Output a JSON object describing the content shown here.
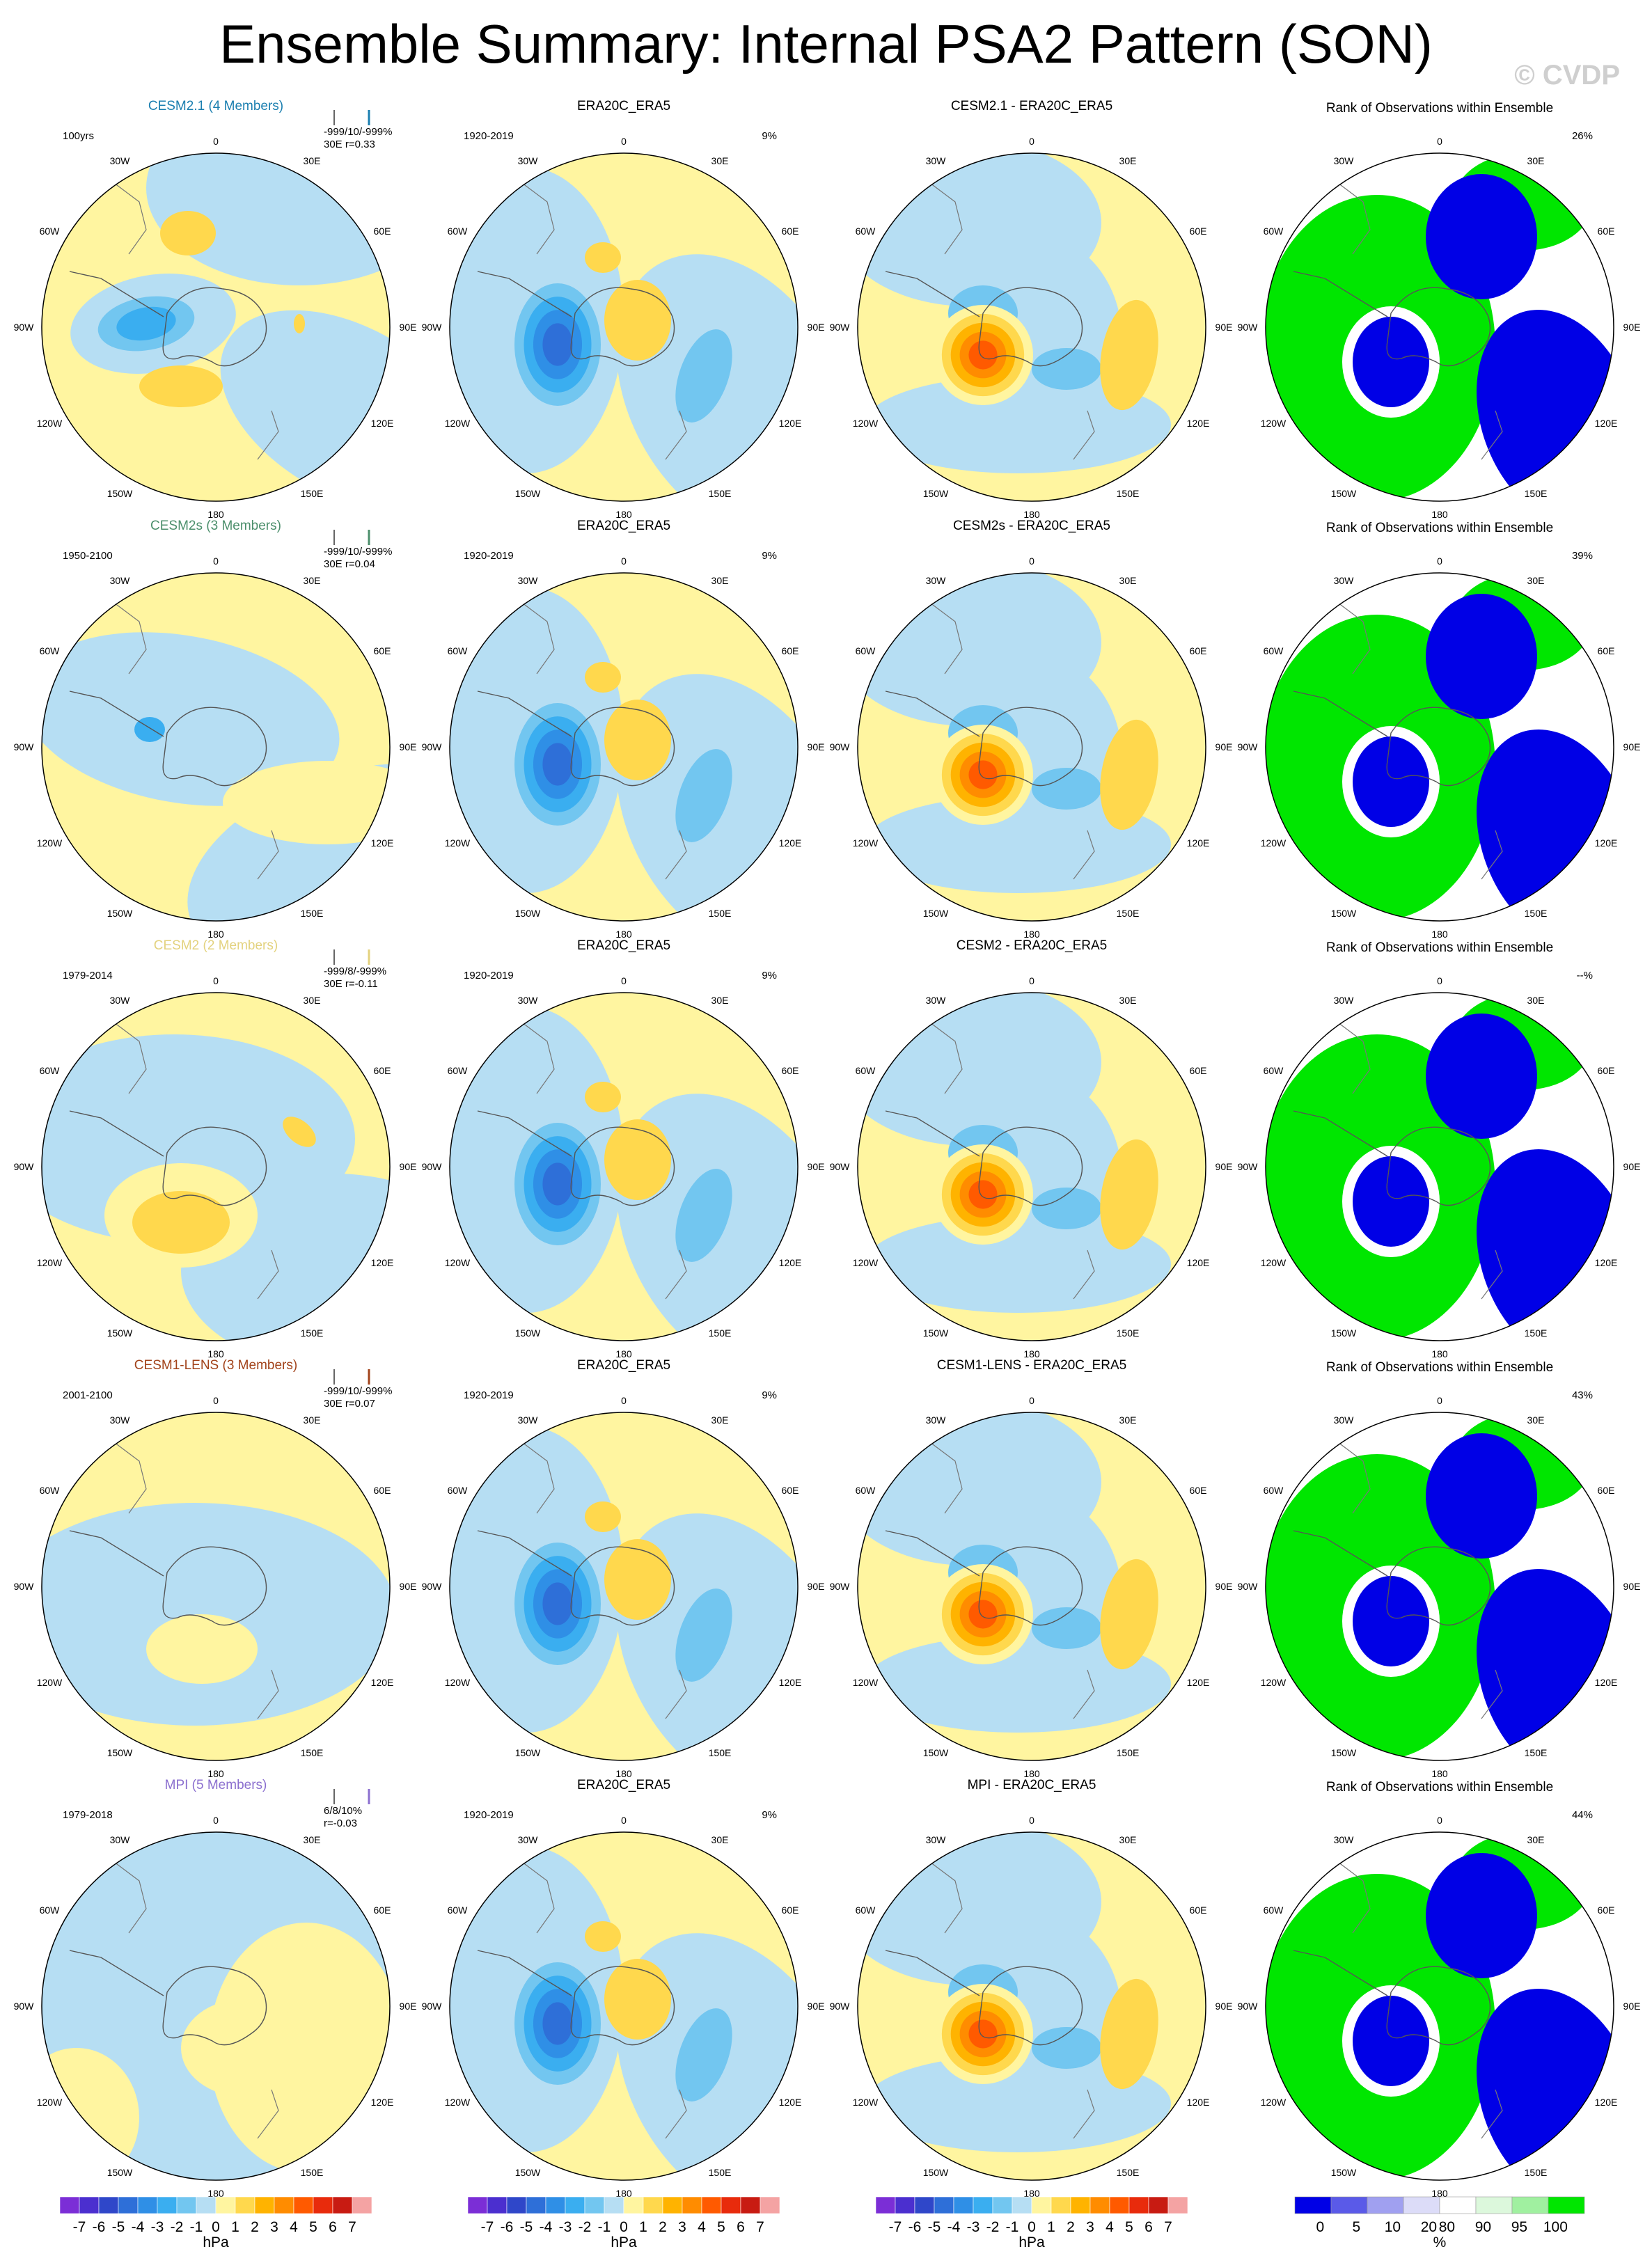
{
  "title": "Ensemble Summary: Internal PSA2 Pattern (SON)",
  "watermark": "© CVDP",
  "chart_data": {
    "type": "polar-map-panels",
    "projection": "south polar stereographic",
    "variable": "PSA2 pattern",
    "season": "SON",
    "columns": [
      "model ensemble mean",
      "ERA20C_ERA5",
      "difference",
      "rank"
    ],
    "rows": [
      {
        "model": "CESM2.1 (4 Members)",
        "model_color": "#1b7fb0",
        "period": "100yrs",
        "stats": [
          "-999/10/-999%",
          "30E  r=0.33"
        ],
        "obs_title": "ERA20C_ERA5",
        "obs_period": "1920-2019",
        "obs_pct": "9%",
        "diff_title": "CESM2.1 - ERA20C_ERA5",
        "rank_title": "Rank of Observations within Ensemble",
        "rank_pct": "26%"
      },
      {
        "model": "CESM2s (3 Members)",
        "model_color": "#4c8f6c",
        "period": "1950-2100",
        "stats": [
          "-999/10/-999%",
          "30E  r=0.04"
        ],
        "obs_title": "ERA20C_ERA5",
        "obs_period": "1920-2019",
        "obs_pct": "9%",
        "diff_title": "CESM2s - ERA20C_ERA5",
        "rank_title": "Rank of Observations within Ensemble",
        "rank_pct": "39%"
      },
      {
        "model": "CESM2 (2 Members)",
        "model_color": "#e3d27e",
        "period": "1979-2014",
        "stats": [
          "-999/8/-999%",
          "30E  r=-0.11"
        ],
        "obs_title": "ERA20C_ERA5",
        "obs_period": "1920-2019",
        "obs_pct": "9%",
        "diff_title": "CESM2 - ERA20C_ERA5",
        "rank_title": "Rank of Observations within Ensemble",
        "rank_pct": "--%"
      },
      {
        "model": "CESM1-LENS (3 Members)",
        "model_color": "#a2431b",
        "period": "2001-2100",
        "stats": [
          "-999/10/-999%",
          "30E  r=0.07"
        ],
        "obs_title": "ERA20C_ERA5",
        "obs_period": "1920-2019",
        "obs_pct": "9%",
        "diff_title": "CESM1-LENS - ERA20C_ERA5",
        "rank_title": "Rank of Observations within Ensemble",
        "rank_pct": "43%"
      },
      {
        "model": "MPI (5 Members)",
        "model_color": "#8b6fcf",
        "period": "1979-2018",
        "stats": [
          "6/8/10%",
          "r=-0.03"
        ],
        "obs_title": "ERA20C_ERA5",
        "obs_period": "1920-2019",
        "obs_pct": "9%",
        "diff_title": "MPI - ERA20C_ERA5",
        "rank_title": "Rank of Observations within Ensemble",
        "rank_pct": "44%"
      }
    ],
    "lon_labels": {
      "top": "0",
      "bottom": "180",
      "left": [
        "30W",
        "60W",
        "90W",
        "120W",
        "150W"
      ],
      "right": [
        "30E",
        "60E",
        "90E",
        "120E",
        "150E"
      ]
    },
    "colorbar": {
      "labels": [
        "-7",
        "-6",
        "-5",
        "-4",
        "-3",
        "-2",
        "-1",
        "0",
        "1",
        "2",
        "3",
        "4",
        "5",
        "6",
        "7"
      ],
      "colors": [
        "#7b2ed6",
        "#4b2fcf",
        "#2f47c9",
        "#2e6fd8",
        "#2f8fe6",
        "#3aaef0",
        "#72c6f0",
        "#b6def3",
        "#fff5a0",
        "#ffd84d",
        "#ffb300",
        "#ff8c00",
        "#ff5a00",
        "#e82b0c",
        "#c81b12",
        "#f4a3a3"
      ],
      "unit": "hPa"
    },
    "rank_colorbar": {
      "labels": [
        "0",
        "5",
        "10",
        "20",
        "80",
        "90",
        "95",
        "100"
      ],
      "colors": [
        "#0000e6",
        "#5a5ae8",
        "#a0a0f0",
        "#dcdcf8",
        "#ffffff",
        "#dcf8dc",
        "#a0f0a0",
        "#00e600"
      ],
      "unit": "%"
    }
  }
}
